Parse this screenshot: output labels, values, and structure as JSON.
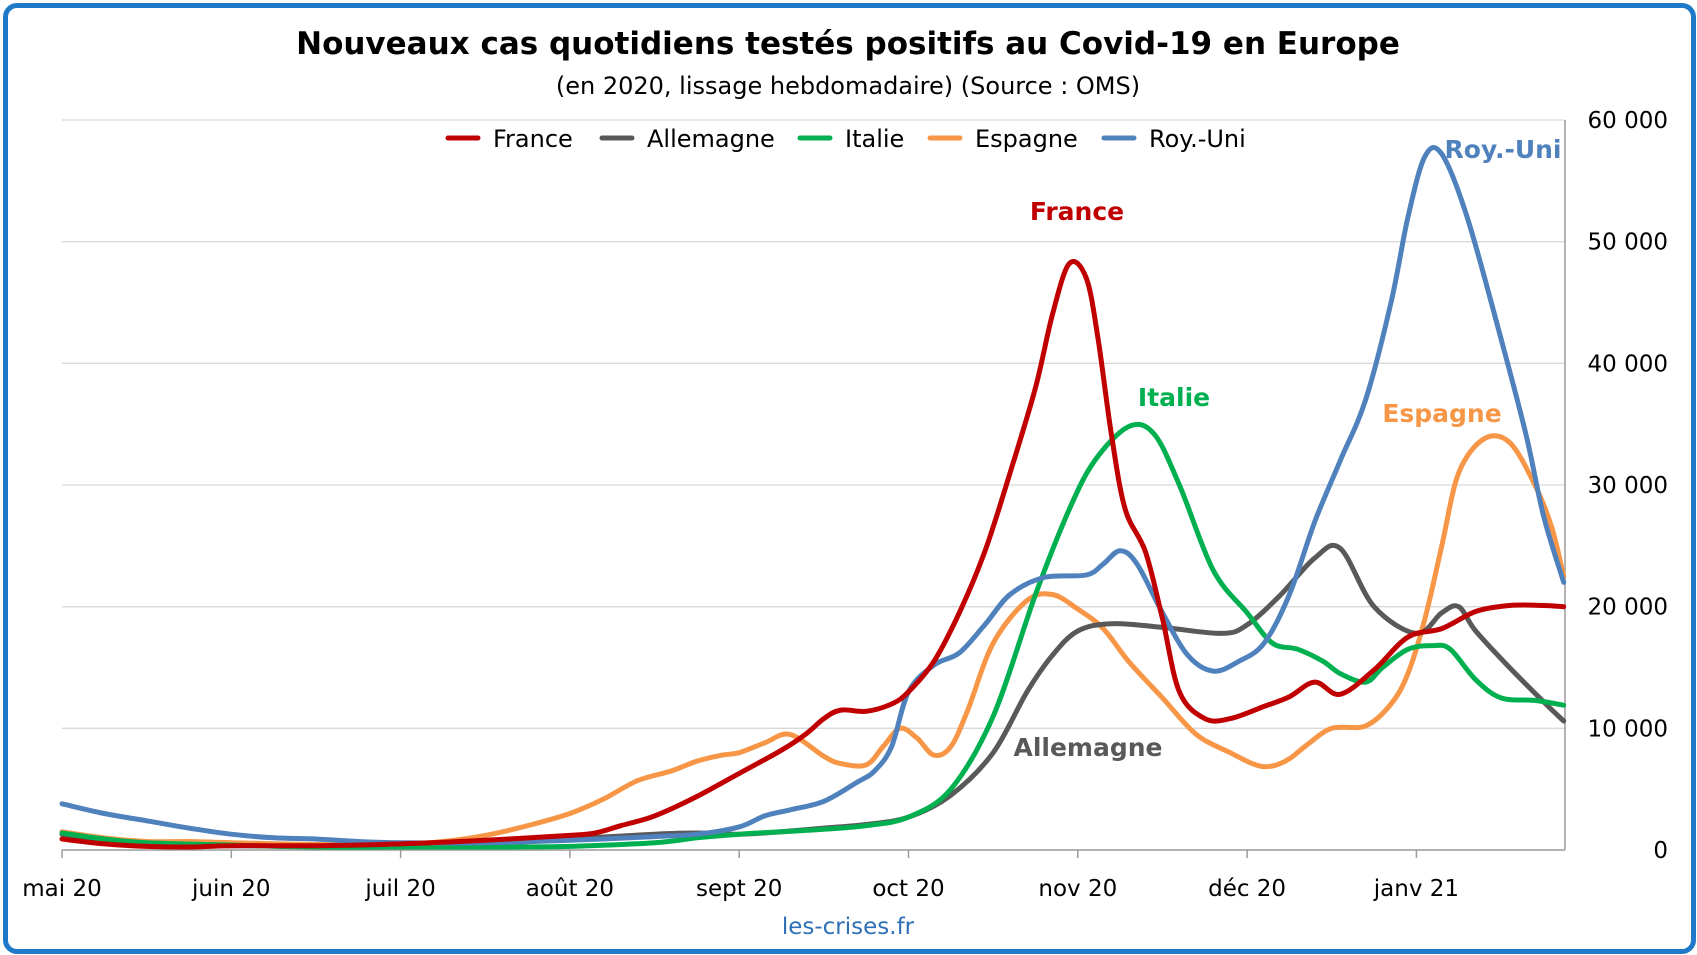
{
  "chart_data": {
    "type": "line",
    "title": "Nouveaux cas quotidiens testés positifs au Covid-19 en Europe",
    "subtitle": "(en 2020, lissage hebdomadaire) (Source : OMS)",
    "source_label": "les-crises.fr",
    "x_unit": "months since mai 20",
    "categories": [
      "mai 20",
      "juin 20",
      "juil 20",
      "août 20",
      "sept 20",
      "oct 20",
      "nov 20",
      "déc 20",
      "janv 21"
    ],
    "xlim": [
      0,
      8.9
    ],
    "ylim": [
      0,
      60000
    ],
    "y_ticks": [
      0,
      10000,
      20000,
      30000,
      40000,
      50000,
      60000
    ],
    "y_tick_labels": [
      "0",
      "10 000",
      "20 000",
      "30 000",
      "40 000",
      "50 000",
      "60 000"
    ],
    "y_axis_side": "right",
    "grid": true,
    "legend_position": "top",
    "series": [
      {
        "name": "France",
        "color": "#c00000",
        "annotation": "France",
        "points": [
          [
            0,
            900
          ],
          [
            0.25,
            500
          ],
          [
            0.5,
            300
          ],
          [
            0.75,
            250
          ],
          [
            1,
            350
          ],
          [
            1.5,
            350
          ],
          [
            2,
            500
          ],
          [
            2.5,
            800
          ],
          [
            3,
            1200
          ],
          [
            3.15,
            1400
          ],
          [
            3.3,
            2000
          ],
          [
            3.5,
            2800
          ],
          [
            3.75,
            4400
          ],
          [
            4,
            6300
          ],
          [
            4.25,
            8200
          ],
          [
            4.4,
            9600
          ],
          [
            4.5,
            10800
          ],
          [
            4.6,
            11500
          ],
          [
            4.75,
            11400
          ],
          [
            4.9,
            12000
          ],
          [
            5,
            13000
          ],
          [
            5.15,
            15500
          ],
          [
            5.3,
            19500
          ],
          [
            5.45,
            24500
          ],
          [
            5.6,
            31000
          ],
          [
            5.75,
            38000
          ],
          [
            5.85,
            44000
          ],
          [
            5.95,
            48200
          ],
          [
            6.05,
            47000
          ],
          [
            6.12,
            42000
          ],
          [
            6.2,
            34000
          ],
          [
            6.28,
            28000
          ],
          [
            6.4,
            24500
          ],
          [
            6.5,
            19000
          ],
          [
            6.6,
            13000
          ],
          [
            6.75,
            10800
          ],
          [
            6.9,
            10800
          ],
          [
            7.1,
            11800
          ],
          [
            7.25,
            12600
          ],
          [
            7.4,
            13800
          ],
          [
            7.55,
            12800
          ],
          [
            7.75,
            14800
          ],
          [
            7.95,
            17500
          ],
          [
            8.15,
            18200
          ],
          [
            8.35,
            19600
          ],
          [
            8.55,
            20100
          ],
          [
            8.75,
            20100
          ],
          [
            8.87,
            20000
          ]
        ]
      },
      {
        "name": "Allemagne",
        "color": "#595959",
        "annotation": "Allemagne",
        "points": [
          [
            0,
            1300
          ],
          [
            0.25,
            800
          ],
          [
            0.5,
            500
          ],
          [
            1,
            350
          ],
          [
            1.5,
            300
          ],
          [
            2,
            350
          ],
          [
            2.5,
            500
          ],
          [
            3,
            900
          ],
          [
            3.5,
            1300
          ],
          [
            3.75,
            1400
          ],
          [
            4,
            1300
          ],
          [
            4.25,
            1500
          ],
          [
            4.5,
            1800
          ],
          [
            4.75,
            2100
          ],
          [
            5,
            2700
          ],
          [
            5.25,
            4500
          ],
          [
            5.5,
            8000
          ],
          [
            5.7,
            13000
          ],
          [
            5.85,
            16000
          ],
          [
            6,
            18000
          ],
          [
            6.2,
            18600
          ],
          [
            6.5,
            18300
          ],
          [
            6.85,
            17800
          ],
          [
            7,
            18500
          ],
          [
            7.2,
            21000
          ],
          [
            7.4,
            24000
          ],
          [
            7.55,
            24800
          ],
          [
            7.75,
            20000
          ],
          [
            8,
            17800
          ],
          [
            8.15,
            19500
          ],
          [
            8.25,
            20000
          ],
          [
            8.35,
            18000
          ],
          [
            8.55,
            15000
          ],
          [
            8.75,
            12200
          ],
          [
            8.87,
            10600
          ]
        ]
      },
      {
        "name": "Italie",
        "color": "#00b050",
        "annotation": "Italie",
        "points": [
          [
            0,
            1400
          ],
          [
            0.25,
            900
          ],
          [
            0.5,
            600
          ],
          [
            1,
            400
          ],
          [
            1.5,
            250
          ],
          [
            2,
            250
          ],
          [
            2.5,
            250
          ],
          [
            3,
            300
          ],
          [
            3.5,
            600
          ],
          [
            3.75,
            1000
          ],
          [
            4,
            1300
          ],
          [
            4.25,
            1500
          ],
          [
            4.5,
            1700
          ],
          [
            4.75,
            2000
          ],
          [
            5,
            2700
          ],
          [
            5.25,
            5000
          ],
          [
            5.5,
            11000
          ],
          [
            5.75,
            21000
          ],
          [
            5.95,
            28000
          ],
          [
            6.1,
            32000
          ],
          [
            6.3,
            34800
          ],
          [
            6.45,
            34200
          ],
          [
            6.6,
            30000
          ],
          [
            6.8,
            23000
          ],
          [
            7,
            19500
          ],
          [
            7.15,
            17000
          ],
          [
            7.3,
            16500
          ],
          [
            7.45,
            15500
          ],
          [
            7.55,
            14500
          ],
          [
            7.7,
            13800
          ],
          [
            7.8,
            15000
          ],
          [
            7.95,
            16500
          ],
          [
            8.1,
            16800
          ],
          [
            8.2,
            16500
          ],
          [
            8.35,
            14000
          ],
          [
            8.5,
            12500
          ],
          [
            8.7,
            12300
          ],
          [
            8.87,
            11900
          ]
        ]
      },
      {
        "name": "Espagne",
        "color": "#f79646",
        "annotation": "Espagne",
        "points": [
          [
            0,
            1500
          ],
          [
            0.25,
            1000
          ],
          [
            0.5,
            700
          ],
          [
            0.75,
            700
          ],
          [
            1,
            600
          ],
          [
            1.5,
            450
          ],
          [
            2,
            450
          ],
          [
            2.25,
            700
          ],
          [
            2.5,
            1200
          ],
          [
            2.75,
            2000
          ],
          [
            3,
            3000
          ],
          [
            3.2,
            4200
          ],
          [
            3.4,
            5700
          ],
          [
            3.6,
            6500
          ],
          [
            3.75,
            7300
          ],
          [
            3.9,
            7800
          ],
          [
            4,
            8000
          ],
          [
            4.15,
            8800
          ],
          [
            4.3,
            9500
          ],
          [
            4.5,
            7700
          ],
          [
            4.6,
            7100
          ],
          [
            4.75,
            7000
          ],
          [
            4.85,
            8500
          ],
          [
            4.95,
            10000
          ],
          [
            5.05,
            9200
          ],
          [
            5.15,
            7800
          ],
          [
            5.25,
            8500
          ],
          [
            5.35,
            11500
          ],
          [
            5.5,
            17000
          ],
          [
            5.7,
            20500
          ],
          [
            5.85,
            21000
          ],
          [
            6,
            19800
          ],
          [
            6.15,
            18200
          ],
          [
            6.3,
            15500
          ],
          [
            6.5,
            12500
          ],
          [
            6.7,
            9500
          ],
          [
            6.9,
            8000
          ],
          [
            7.05,
            7000
          ],
          [
            7.15,
            6900
          ],
          [
            7.25,
            7500
          ],
          [
            7.35,
            8600
          ],
          [
            7.5,
            10000
          ],
          [
            7.7,
            10200
          ],
          [
            7.85,
            12000
          ],
          [
            7.95,
            14500
          ],
          [
            8.05,
            19000
          ],
          [
            8.15,
            25000
          ],
          [
            8.25,
            31000
          ],
          [
            8.4,
            33800
          ],
          [
            8.55,
            33500
          ],
          [
            8.7,
            30000
          ],
          [
            8.8,
            26500
          ],
          [
            8.87,
            22500
          ]
        ]
      },
      {
        "name": "Roy.-Uni",
        "color": "#4f81bd",
        "annotation": "Roy.-Uni",
        "points": [
          [
            0,
            3800
          ],
          [
            0.25,
            3000
          ],
          [
            0.5,
            2400
          ],
          [
            0.75,
            1800
          ],
          [
            1,
            1300
          ],
          [
            1.25,
            1000
          ],
          [
            1.5,
            900
          ],
          [
            1.75,
            700
          ],
          [
            2,
            600
          ],
          [
            2.5,
            600
          ],
          [
            3,
            800
          ],
          [
            3.5,
            1100
          ],
          [
            3.75,
            1300
          ],
          [
            4,
            1900
          ],
          [
            4.15,
            2800
          ],
          [
            4.3,
            3300
          ],
          [
            4.5,
            4000
          ],
          [
            4.7,
            5600
          ],
          [
            4.8,
            6500
          ],
          [
            4.9,
            8500
          ],
          [
            5,
            13000
          ],
          [
            5.15,
            15200
          ],
          [
            5.3,
            16200
          ],
          [
            5.45,
            18500
          ],
          [
            5.6,
            21000
          ],
          [
            5.8,
            22400
          ],
          [
            6.05,
            22600
          ],
          [
            6.15,
            23500
          ],
          [
            6.25,
            24600
          ],
          [
            6.35,
            23500
          ],
          [
            6.5,
            19500
          ],
          [
            6.65,
            16000
          ],
          [
            6.8,
            14700
          ],
          [
            6.95,
            15500
          ],
          [
            7.1,
            17000
          ],
          [
            7.25,
            21000
          ],
          [
            7.4,
            27000
          ],
          [
            7.55,
            32000
          ],
          [
            7.7,
            37000
          ],
          [
            7.85,
            45000
          ],
          [
            7.95,
            52000
          ],
          [
            8.05,
            57000
          ],
          [
            8.15,
            57200
          ],
          [
            8.3,
            52000
          ],
          [
            8.5,
            42000
          ],
          [
            8.65,
            34000
          ],
          [
            8.75,
            27500
          ],
          [
            8.87,
            22000
          ]
        ]
      }
    ]
  }
}
